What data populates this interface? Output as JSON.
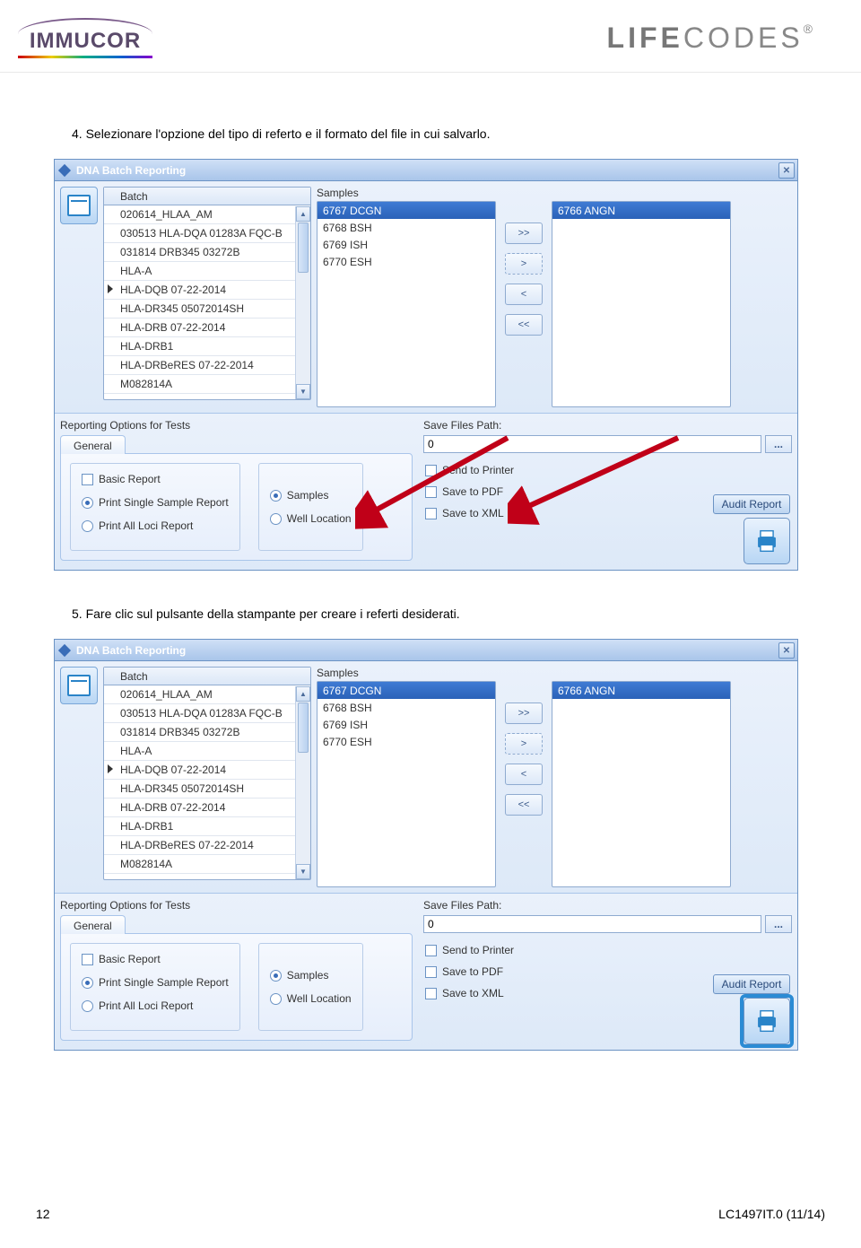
{
  "header": {
    "logo_left": "IMMUCOR",
    "logo_right_bold": "LIFE",
    "logo_right_light": "CODES",
    "logo_right_reg": "®"
  },
  "instructions": {
    "step4": "4.  Selezionare l'opzione del tipo di referto e il formato del file in cui salvarlo.",
    "step5": "5.  Fare clic sul pulsante della stampante per creare i referti desiderati."
  },
  "dialog": {
    "title": "DNA Batch Reporting",
    "batch_header": "Batch",
    "batches": [
      "020614_HLAA_AM",
      "030513 HLA-DQA 01283A FQC-B",
      "031814 DRB345 03272B",
      "HLA-A",
      "HLA-DQB 07-22-2014",
      "HLA-DR345 05072014SH",
      "HLA-DRB 07-22-2014",
      "HLA-DRB1",
      "HLA-DRBeRES 07-22-2014",
      "M082814A"
    ],
    "batch_marker_index": 4,
    "samples_header": "Samples",
    "samples": [
      "6767 DCGN",
      "6768 BSH",
      "6769 ISH",
      "6770 ESH"
    ],
    "samples_selected_index": 0,
    "selected": [
      "6766 ANGN"
    ],
    "move_buttons": {
      "all_r": ">>",
      "one_r": ">",
      "one_l": "<",
      "all_l": "<<"
    },
    "reporting_label": "Reporting Options for Tests",
    "tab_general": "General",
    "basic_report": "Basic Report",
    "print_single": "Print Single Sample Report",
    "print_all": "Print All Loci Report",
    "samples_opt": "Samples",
    "well_opt": "Well Location",
    "save_path_label": "Save Files Path:",
    "save_path_value": "0",
    "path_btn": "...",
    "send_printer": "Send to Printer",
    "save_pdf": "Save to PDF",
    "save_xml": "Save to XML",
    "audit": "Audit Report",
    "close_x": "✕"
  },
  "footer": {
    "page": "12",
    "doc": "LC1497IT.0 (11/14)"
  },
  "colors": {
    "arrow": "#c00018",
    "highlight": "#2b8bd4"
  }
}
